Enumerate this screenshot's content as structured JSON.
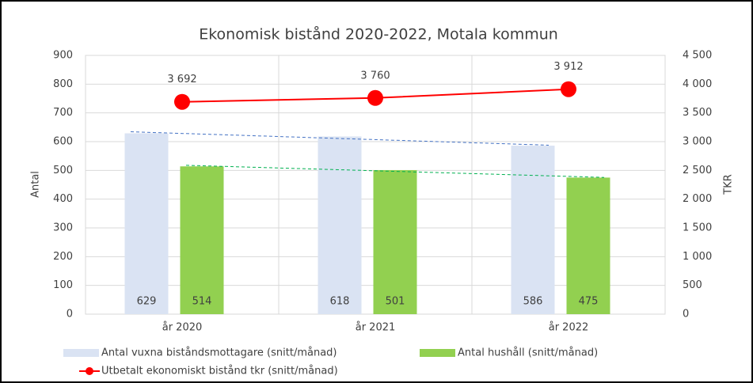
{
  "chart_data": {
    "type": "bar+line",
    "title": "Ekonomisk bistånd 2020-2022, Motala kommun",
    "categories": [
      "år 2020",
      "år 2021",
      "år 2022"
    ],
    "series": [
      {
        "name": "Antal vuxna biståndsmottagare (snitt/månad)",
        "color": "#dae3f3",
        "type": "bar",
        "values": [
          629,
          618,
          586
        ],
        "trendline": true,
        "trend_color": "#4472c4"
      },
      {
        "name": "Antal hushåll (snitt/månad)",
        "color": "#92d050",
        "type": "bar",
        "values": [
          514,
          501,
          475
        ],
        "trendline": true,
        "trend_color": "#00b050"
      },
      {
        "name": "Utbetalt ekonomiskt bistånd tkr (snitt/månad)",
        "color": "#ff0000",
        "type": "line",
        "axis": "y2",
        "values": [
          3692,
          3760,
          3912
        ],
        "value_labels": [
          "3 692",
          "3 760",
          "3 912"
        ]
      }
    ],
    "ylabel": "Antal",
    "y2label": "TKR",
    "ylim": [
      0,
      900
    ],
    "yticks": [
      0,
      100,
      200,
      300,
      400,
      500,
      600,
      700,
      800,
      900
    ],
    "y2lim": [
      0,
      4500
    ],
    "y2ticks": [
      0,
      500,
      {
        "value": 1000,
        "label": "1 000"
      },
      {
        "value": 1500,
        "label": "1 500"
      },
      {
        "value": 2000,
        "label": "2 000"
      },
      {
        "value": 2500,
        "label": "2 500"
      },
      {
        "value": 3000,
        "label": "3 000"
      },
      {
        "value": 3500,
        "label": "3 500"
      },
      {
        "value": 4000,
        "label": "4 000"
      },
      {
        "value": 4500,
        "label": "4 500"
      }
    ],
    "grid": true,
    "legend": "bottom"
  }
}
